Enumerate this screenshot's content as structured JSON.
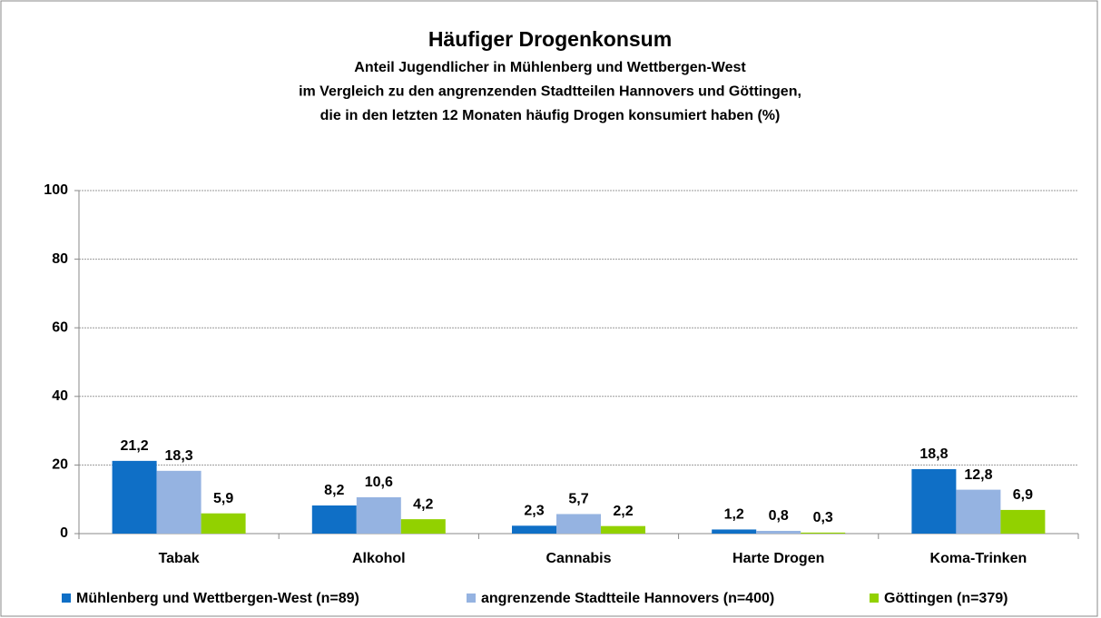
{
  "chart_data": {
    "type": "bar",
    "title": "Häufiger Drogenkonsum",
    "subtitle": [
      "Anteil Jugendlicher in Mühlenberg und Wettbergen-West",
      "im Vergleich zu den angrenzenden Stadtteilen Hannovers und Göttingen,",
      "die in den letzten 12 Monaten häufig Drogen konsumiert haben (%)"
    ],
    "categories": [
      "Tabak",
      "Alkohol",
      "Cannabis",
      "Harte Drogen",
      "Koma-Trinken"
    ],
    "series": [
      {
        "name": "Mühlenberg und Wettbergen-West (n=89)",
        "color": "#0f6fc6",
        "values": [
          21.2,
          8.2,
          2.3,
          1.2,
          18.8
        ],
        "value_labels": [
          "21,2",
          "8,2",
          "2,3",
          "1,2",
          "18,8"
        ]
      },
      {
        "name": "angrenzende Stadtteile Hannovers (n=400)",
        "color": "#95b3e1",
        "values": [
          18.3,
          10.6,
          5.7,
          0.8,
          12.8
        ],
        "value_labels": [
          "18,3",
          "10,6",
          "5,7",
          "0,8",
          "12,8"
        ]
      },
      {
        "name": "Göttingen (n=379)",
        "color": "#92d100",
        "values": [
          5.9,
          4.2,
          2.2,
          0.3,
          6.9
        ],
        "value_labels": [
          "5,9",
          "4,2",
          "2,2",
          "0,3",
          "6,9"
        ]
      }
    ],
    "ylim": [
      0,
      100
    ],
    "yticks": [
      0,
      20,
      40,
      60,
      80,
      100
    ],
    "grid": true,
    "legend": "bottom"
  }
}
